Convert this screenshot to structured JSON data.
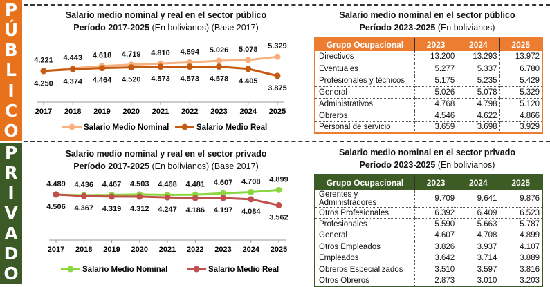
{
  "colors": {
    "publico_band": "#e8711c",
    "privado_band": "#3b5a25",
    "publico_header": "#ed7d31",
    "privado_header": "#3d5b25",
    "publico_nominal": "#f7b07e",
    "publico_real": "#c55a11",
    "privado_nominal": "#8cd63f",
    "privado_real": "#c0504d"
  },
  "publico": {
    "band_letters": [
      "P",
      "Ú",
      "B",
      "L",
      "I",
      "C",
      "O"
    ],
    "chart_title_line1": "Salario medio nominal y real en el sector público",
    "chart_title_line2_bold": "Período 2017-2025",
    "chart_title_line2_rest": " (En bolivianos) (Base 2017)",
    "table_title_line1": "Salario medio nominal en el sector público",
    "table_title_line2_bold": "Período 2023-2025",
    "table_title_line2_rest": " (En bolivianos)",
    "table": {
      "headers": [
        "Grupo Ocupacional",
        "2023",
        "2024",
        "2025"
      ],
      "rows": [
        [
          "Directivos",
          "13.200",
          "13.293",
          "13.972"
        ],
        [
          "Eventuales",
          "5.277",
          "5.337",
          "6.780"
        ],
        [
          "Profesionales y técnicos",
          "5.175",
          "5.235",
          "5.429"
        ],
        [
          "General",
          "5.026",
          "5.078",
          "5.329"
        ],
        [
          "Administrativos",
          "4.768",
          "4.798",
          "5.120"
        ],
        [
          "Obreros",
          "4.546",
          "4.622",
          "4.866"
        ],
        [
          "Personal de servicio",
          "3.659",
          "3.698",
          "3.929"
        ]
      ]
    }
  },
  "privado": {
    "band_letters": [
      "P",
      "R",
      "I",
      "V",
      "A",
      "D",
      "O"
    ],
    "chart_title_line1": "Salario medio nominal y real en el sector privado",
    "chart_title_line2_bold": "Período 2017-2025",
    "chart_title_line2_rest": " (En bolivianos) (Base 2017)",
    "table_title_line1": "Salario medio nominal en el sector privado",
    "table_title_line2_bold": "Período 2023-2025",
    "table_title_line2_rest": " (En bolivianos)",
    "table": {
      "headers": [
        "Grupo Ocupacional",
        "2023",
        "2024",
        "2025"
      ],
      "rows": [
        [
          "Gerentes y Administradores",
          "9.709",
          "9.641",
          "9.876"
        ],
        [
          "Otros Profesionales",
          "6.392",
          "6.409",
          "6.523"
        ],
        [
          "Profesionales",
          "5.590",
          "5.663",
          "5.787"
        ],
        [
          "General",
          "4.607",
          "4.708",
          "4.899"
        ],
        [
          "Otros Empleados",
          "3.826",
          "3.937",
          "4.107"
        ],
        [
          "Empleados",
          "3.642",
          "3.714",
          "3.889"
        ],
        [
          "Obreros Especializados",
          "3.510",
          "3.597",
          "3.816"
        ],
        [
          "Otros Obreros",
          "2.873",
          "3.010",
          "3.203"
        ]
      ]
    }
  },
  "chart_data": [
    {
      "type": "line",
      "title": "Salario medio nominal y real en el sector público Período 2017-2025 (En bolivianos) (Base 2017)",
      "categories": [
        "2017",
        "2018",
        "2019",
        "2020",
        "2021",
        "2022",
        "2023",
        "2024",
        "2025"
      ],
      "series": [
        {
          "name": "Salario Medio Nominal",
          "values": [
            4221,
            4443,
            4618,
            4719,
            4810,
            4894,
            5026,
            5078,
            5329
          ],
          "labels": [
            "4.221",
            "4.443",
            "4.618",
            "4.719",
            "4.810",
            "4.894",
            "5.026",
            "5.078",
            "5.329"
          ],
          "color": "#f7b07e"
        },
        {
          "name": "Salario Medio Real",
          "values": [
            4250,
            4374,
            4464,
            4520,
            4573,
            4573,
            4578,
            4405,
            3875
          ],
          "labels": [
            "4.250",
            "4.374",
            "4.464",
            "4.520",
            "4.573",
            "4.573",
            "4.578",
            "4.405",
            "3.875"
          ],
          "color": "#c55a11"
        }
      ],
      "legend": "bottom",
      "grid": false
    },
    {
      "type": "line",
      "title": "Salario medio nominal y real en el sector privado Período 2017-2025 (En bolivianos) (Base 2017)",
      "categories": [
        "2017",
        "2018",
        "2019",
        "2020",
        "2021",
        "2022",
        "2023",
        "2024",
        "2025"
      ],
      "series": [
        {
          "name": "Salario Medio Nominal",
          "values": [
            4489,
            4436,
            4467,
            4503,
            4468,
            4481,
            4607,
            4708,
            4899
          ],
          "labels": [
            "4.489",
            "4.436",
            "4.467",
            "4.503",
            "4.468",
            "4.481",
            "4.607",
            "4.708",
            "4.899"
          ],
          "color": "#8cd63f"
        },
        {
          "name": "Salario Medio Real",
          "values": [
            4506,
            4367,
            4319,
            4312,
            4247,
            4186,
            4197,
            4084,
            3562
          ],
          "labels": [
            "4.506",
            "4.367",
            "4.319",
            "4.312",
            "4.247",
            "4.186",
            "4.197",
            "4.084",
            "3.562"
          ],
          "color": "#c0504d"
        }
      ],
      "legend": "bottom",
      "grid": false
    }
  ]
}
